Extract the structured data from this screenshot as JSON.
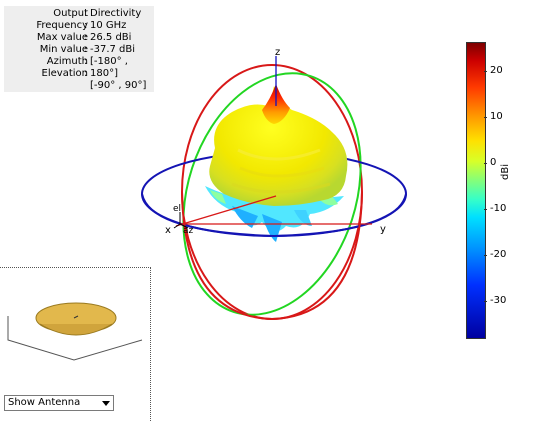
{
  "info": {
    "rows": [
      {
        "key": "Output",
        "value": "Directivity"
      },
      {
        "key": "Frequency",
        "value": "10 GHz"
      },
      {
        "key": "Max value",
        "value": "26.5 dBi"
      },
      {
        "key": "Min value",
        "value": "-37.7 dBi"
      },
      {
        "key": "Azimuth",
        "value": "[-180° ,"
      },
      {
        "key": "Elevation",
        "value": "180°]"
      },
      {
        "key": "",
        "value": "[-90° , 90°]"
      }
    ],
    "separator": ":"
  },
  "axes": {
    "z": "z",
    "x": "x",
    "y": "y",
    "el": "el",
    "az": "az"
  },
  "colorbar": {
    "ticks": [
      "20",
      "10",
      "0",
      "-10",
      "-20",
      "-30"
    ],
    "unit": "dBi",
    "colors": [
      "#7d0000",
      "#ff3a00",
      "#ffe000",
      "#36ffc8",
      "#0030ff",
      "#0000a0"
    ]
  },
  "dropdown": {
    "selected": "Show Antenna"
  },
  "colors": {
    "x_axis": "#cc0000",
    "y_axis": "#00c800",
    "z_axis": "#1010c0",
    "antenna": "#e2b84c"
  }
}
